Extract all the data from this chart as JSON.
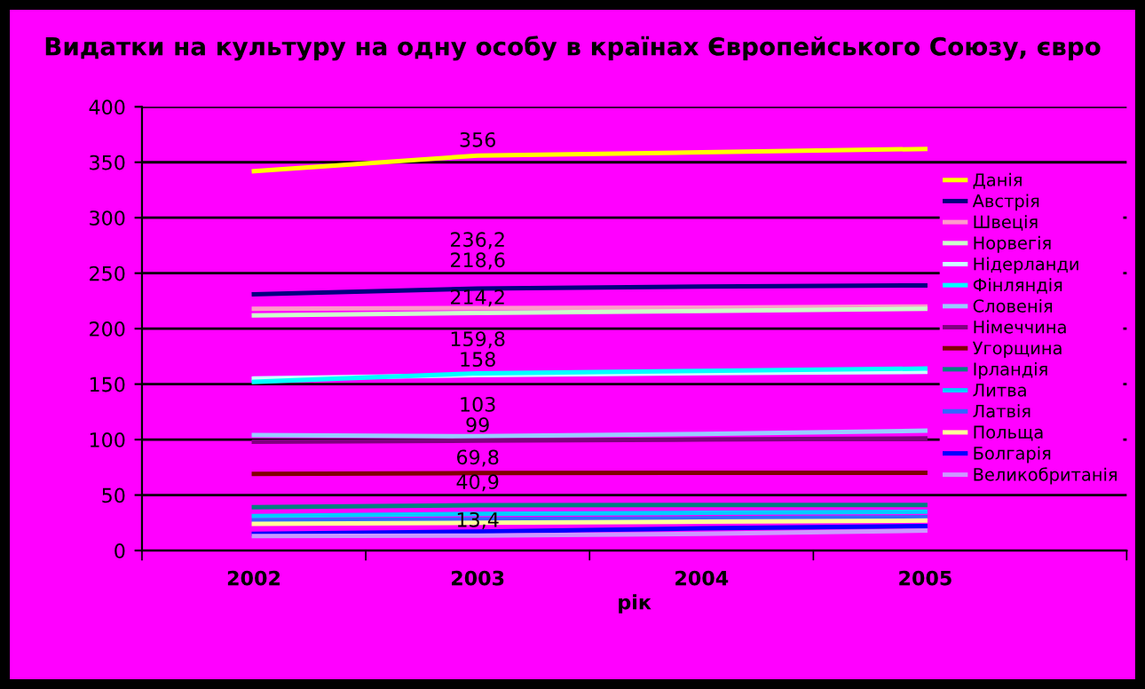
{
  "chart_data": {
    "type": "line",
    "title": "Видатки на культуру на одну особу в країнах Європейського Союзу, євро",
    "xlabel": "рік",
    "categories": [
      "2002",
      "2003",
      "2004",
      "2005"
    ],
    "ylim": [
      0,
      400
    ],
    "yticks": [
      0,
      50,
      100,
      150,
      200,
      250,
      300,
      350,
      400
    ],
    "grid": "y",
    "legend": "right",
    "marker": "none",
    "line_style": "solid",
    "series": [
      {
        "name": "Данія",
        "color": "#ffff00",
        "values": [
          342,
          356,
          359,
          362
        ],
        "value_labels": [
          null,
          "356",
          null,
          null
        ]
      },
      {
        "name": "Австрія",
        "color": "#000080",
        "values": [
          231,
          236.2,
          238,
          239
        ],
        "value_labels": [
          null,
          "236,2",
          null,
          null
        ]
      },
      {
        "name": "Швеція",
        "color": "#ff99cc",
        "values": [
          218,
          218.6,
          219,
          220
        ],
        "value_labels": [
          null,
          "218,6",
          null,
          null
        ]
      },
      {
        "name": "Норвегія",
        "color": "#ccffcc",
        "values": [
          212,
          214.2,
          216,
          218
        ],
        "value_labels": [
          null,
          "214,2",
          null,
          null
        ]
      },
      {
        "name": "Нідерланди",
        "color": "#ccffff",
        "values": [
          155,
          158,
          160,
          161
        ],
        "value_labels": [
          null,
          "158",
          null,
          null
        ]
      },
      {
        "name": "Фінляндія",
        "color": "#00ffff",
        "values": [
          152,
          159.8,
          162,
          164
        ],
        "value_labels": [
          null,
          "159,8",
          null,
          null
        ]
      },
      {
        "name": "Словенія",
        "color": "#99ccff",
        "values": [
          104,
          103,
          105,
          108
        ],
        "value_labels": [
          null,
          "103",
          null,
          null
        ]
      },
      {
        "name": "Німеччина",
        "color": "#800080",
        "values": [
          98,
          99,
          100,
          101
        ],
        "value_labels": [
          null,
          "99",
          null,
          null
        ]
      },
      {
        "name": "Угорщина",
        "color": "#800000",
        "values": [
          69,
          69.8,
          70,
          70
        ],
        "value_labels": [
          null,
          "69,8",
          null,
          null
        ]
      },
      {
        "name": "Ірландія",
        "color": "#008080",
        "values": [
          39,
          40.9,
          41,
          41
        ],
        "value_labels": [
          null,
          "40,9",
          null,
          null
        ]
      },
      {
        "name": "Литва",
        "color": "#00ccff",
        "values": [
          31,
          33,
          34,
          35
        ]
      },
      {
        "name": "Латвія",
        "color": "#3366ff",
        "values": [
          27,
          28,
          29,
          30
        ]
      },
      {
        "name": "Польща",
        "color": "#ffff99",
        "values": [
          24,
          25,
          26,
          27
        ]
      },
      {
        "name": "Болгарія",
        "color": "#0000ff",
        "values": [
          15,
          17,
          20,
          22
        ]
      },
      {
        "name": "Великобританія",
        "color": "#cc99ff",
        "values": [
          13,
          13.4,
          15,
          18
        ],
        "value_labels": [
          null,
          "13,4",
          null,
          null
        ]
      }
    ]
  }
}
